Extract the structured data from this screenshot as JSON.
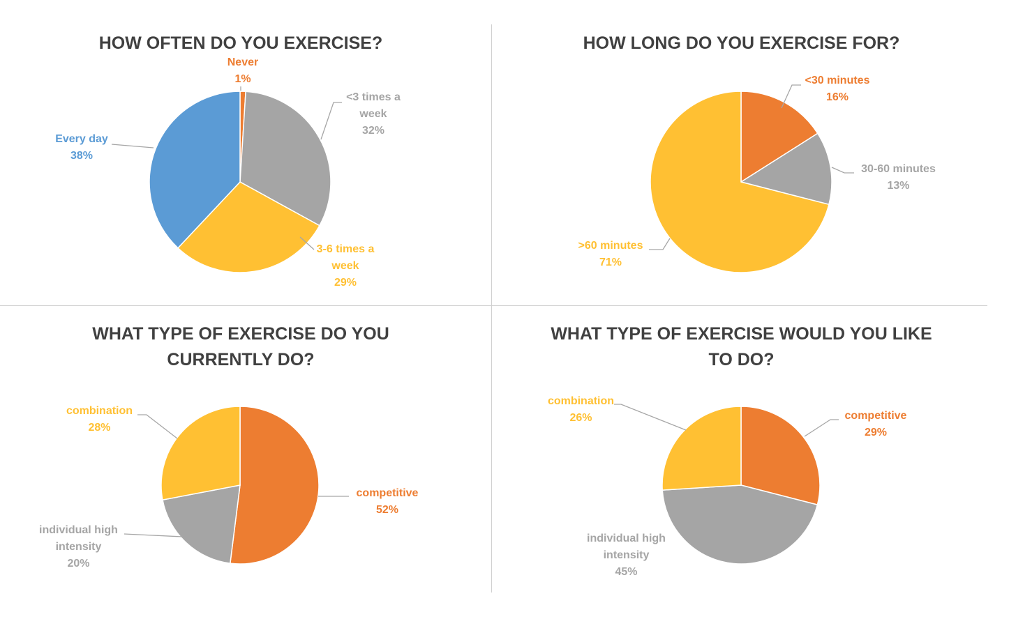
{
  "colors": {
    "orange": "#ED7D31",
    "gray": "#A5A5A5",
    "yellow": "#FFC033",
    "blue": "#5B9BD5",
    "title": "#404040"
  },
  "chart_data": [
    {
      "type": "pie",
      "title": "HOW OFTEN DO YOU EXERCISE?",
      "slices": [
        {
          "label": "Never",
          "label_lines": [
            "Never"
          ],
          "value": 1,
          "pct": "1%",
          "color": "#ED7D31"
        },
        {
          "label": "<3 times a week",
          "label_lines": [
            "<3 times a",
            "week"
          ],
          "value": 32,
          "pct": "32%",
          "color": "#A5A5A5"
        },
        {
          "label": "3-6 times a week",
          "label_lines": [
            "3-6 times a",
            "week"
          ],
          "value": 29,
          "pct": "29%",
          "color": "#FFC033"
        },
        {
          "label": "Every day",
          "label_lines": [
            "Every day"
          ],
          "value": 38,
          "pct": "38%",
          "color": "#5B9BD5"
        }
      ]
    },
    {
      "type": "pie",
      "title": "HOW LONG DO YOU EXERCISE FOR?",
      "slices": [
        {
          "label": "<30 minutes",
          "label_lines": [
            "<30 minutes"
          ],
          "value": 16,
          "pct": "16%",
          "color": "#ED7D31"
        },
        {
          "label": "30-60 minutes",
          "label_lines": [
            "30-60 minutes"
          ],
          "value": 13,
          "pct": "13%",
          "color": "#A5A5A5"
        },
        {
          "label": ">60 minutes",
          "label_lines": [
            ">60 minutes"
          ],
          "value": 71,
          "pct": "71%",
          "color": "#FFC033"
        }
      ]
    },
    {
      "type": "pie",
      "title": "WHAT TYPE OF EXERCISE DO YOU\nCURRENTLY DO?",
      "slices": [
        {
          "label": "competitive",
          "label_lines": [
            "competitive"
          ],
          "value": 52,
          "pct": "52%",
          "color": "#ED7D31"
        },
        {
          "label": "individual high intensity",
          "label_lines": [
            "individual high",
            "intensity"
          ],
          "value": 20,
          "pct": "20%",
          "color": "#A5A5A5"
        },
        {
          "label": "combination",
          "label_lines": [
            "combination"
          ],
          "value": 28,
          "pct": "28%",
          "color": "#FFC033"
        }
      ]
    },
    {
      "type": "pie",
      "title": "WHAT TYPE OF EXERCISE WOULD YOU LIKE\nTO DO?",
      "slices": [
        {
          "label": "competitive",
          "label_lines": [
            "competitive"
          ],
          "value": 29,
          "pct": "29%",
          "color": "#ED7D31"
        },
        {
          "label": "individual high intensity",
          "label_lines": [
            "individual high",
            "intensity"
          ],
          "value": 45,
          "pct": "45%",
          "color": "#A5A5A5"
        },
        {
          "label": "combination",
          "label_lines": [
            "combination"
          ],
          "value": 26,
          "pct": "26%",
          "color": "#FFC033"
        }
      ]
    }
  ]
}
